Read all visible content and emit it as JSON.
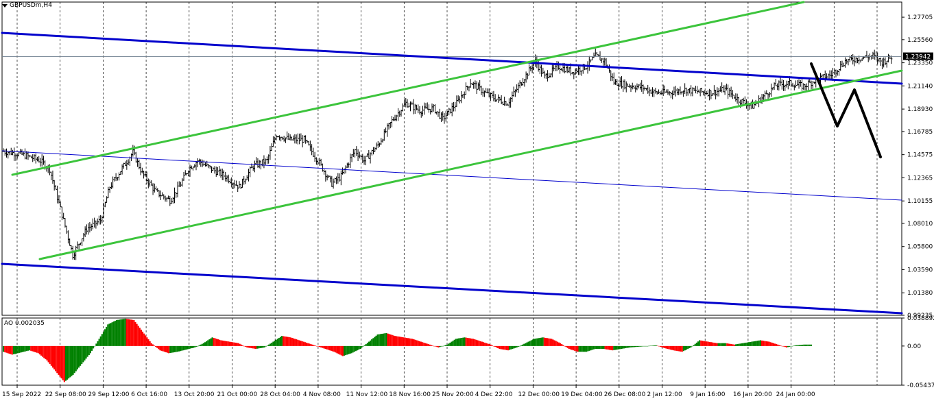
{
  "chart": {
    "symbol": "GBPUSDm,H4",
    "current_price": "1.23942"
  },
  "indicator": {
    "label": "AO 0.002035"
  },
  "colors": {
    "bull_bar": "#008000",
    "bear_bar": "#ff0000",
    "channel_green": "#3cc43c",
    "trend_blue": "#0000cc",
    "forecast_black": "#000000",
    "grid": "#000000"
  },
  "chart_data": [
    {
      "type": "candlestick",
      "title": "",
      "ylim": [
        0.99235,
        1.2915
      ],
      "y_ticks": [
        "1.27705",
        "1.25560",
        "1.23350",
        "1.21140",
        "1.18930",
        "1.16785",
        "1.14575",
        "1.12365",
        "1.10155",
        "1.08010",
        "1.05800",
        "1.03590",
        "1.01380",
        "0.99235"
      ],
      "x_ticks": [
        "15 Sep 2022",
        "22 Sep 08:00",
        "29 Sep 12:00",
        "6 Oct 16:00",
        "13 Oct 20:00",
        "21 Oct 00:00",
        "28 Oct 04:00",
        "4 Nov 08:00",
        "11 Nov 12:00",
        "18 Nov 16:00",
        "25 Nov 20:00",
        "4 Dec 22:00",
        "12 Dec 00:00",
        "19 Dec 04:00",
        "26 Dec 08:00",
        "2 Jan 12:00",
        "9 Jan 16:00",
        "16 Jan 20:00",
        "24 Jan 00:00"
      ],
      "price_path": [
        [
          0,
          1.149
        ],
        [
          4,
          1.146
        ],
        [
          8,
          1.14
        ],
        [
          10,
          1.132
        ],
        [
          13,
          1.083
        ],
        [
          15,
          1.05
        ],
        [
          18,
          1.075
        ],
        [
          21,
          1.083
        ],
        [
          23,
          1.115
        ],
        [
          26,
          1.135
        ],
        [
          28,
          1.148
        ],
        [
          30,
          1.128
        ],
        [
          33,
          1.11
        ],
        [
          36,
          1.102
        ],
        [
          38,
          1.115
        ],
        [
          40,
          1.132
        ],
        [
          42,
          1.14
        ],
        [
          45,
          1.132
        ],
        [
          48,
          1.125
        ],
        [
          51,
          1.115
        ],
        [
          54,
          1.135
        ],
        [
          57,
          1.14
        ],
        [
          59,
          1.165
        ],
        [
          62,
          1.16
        ],
        [
          65,
          1.16
        ],
        [
          68,
          1.14
        ],
        [
          71,
          1.118
        ],
        [
          73,
          1.125
        ],
        [
          76,
          1.15
        ],
        [
          78,
          1.14
        ],
        [
          81,
          1.155
        ],
        [
          84,
          1.178
        ],
        [
          87,
          1.195
        ],
        [
          90,
          1.188
        ],
        [
          93,
          1.19
        ],
        [
          95,
          1.18
        ],
        [
          98,
          1.195
        ],
        [
          101,
          1.215
        ],
        [
          104,
          1.205
        ],
        [
          106,
          1.2
        ],
        [
          109,
          1.195
        ],
        [
          112,
          1.215
        ],
        [
          115,
          1.235
        ],
        [
          117,
          1.22
        ],
        [
          120,
          1.23
        ],
        [
          123,
          1.225
        ],
        [
          126,
          1.23
        ],
        [
          128,
          1.24
        ],
        [
          130,
          1.235
        ],
        [
          132,
          1.215
        ],
        [
          135,
          1.212
        ],
        [
          138,
          1.21
        ],
        [
          141,
          1.205
        ],
        [
          144,
          1.205
        ],
        [
          147,
          1.208
        ],
        [
          150,
          1.206
        ],
        [
          153,
          1.205
        ],
        [
          156,
          1.208
        ],
        [
          159,
          1.198
        ],
        [
          162,
          1.192
        ],
        [
          164,
          1.2
        ],
        [
          167,
          1.212
        ],
        [
          170,
          1.214
        ],
        [
          173,
          1.211
        ],
        [
          176,
          1.218
        ],
        [
          179,
          1.222
        ],
        [
          182,
          1.235
        ],
        [
          185,
          1.238
        ],
        [
          188,
          1.24
        ],
        [
          190,
          1.234
        ],
        [
          192,
          1.239
        ]
      ]
    },
    {
      "type": "bar",
      "title": "AO 0.002035",
      "ylim": [
        -0.054376,
        0.038892
      ],
      "y_ticks": [
        "0.038892",
        "0.00",
        "-0.054376"
      ],
      "values": [
        -0.008,
        -0.012,
        -0.009,
        -0.006,
        -0.01,
        -0.02,
        -0.035,
        -0.05,
        -0.04,
        -0.025,
        -0.01,
        0.01,
        0.03,
        0.036,
        0.038,
        0.036,
        0.02,
        0.004,
        -0.006,
        -0.01,
        -0.008,
        -0.005,
        -0.002,
        0.004,
        0.012,
        0.008,
        0.006,
        0.004,
        -0.002,
        -0.004,
        -0.002,
        0.006,
        0.014,
        0.012,
        0.008,
        0.004,
        0.0,
        -0.004,
        -0.008,
        -0.014,
        -0.01,
        -0.004,
        0.006,
        0.016,
        0.018,
        0.014,
        0.012,
        0.01,
        0.006,
        0.002,
        -0.002,
        0.002,
        0.01,
        0.012,
        0.01,
        0.006,
        0.002,
        -0.004,
        -0.006,
        -0.002,
        0.004,
        0.01,
        0.012,
        0.01,
        0.004,
        -0.004,
        -0.008,
        -0.008,
        -0.004,
        -0.004,
        -0.006,
        -0.004,
        -0.002,
        -0.001,
        0.0,
        0.001,
        -0.003,
        -0.006,
        -0.008,
        -0.002,
        0.008,
        0.006,
        0.004,
        0.004,
        0.002,
        0.004,
        0.006,
        0.008,
        0.006,
        0.002,
        -0.002,
        0.001,
        0.002
      ]
    }
  ]
}
